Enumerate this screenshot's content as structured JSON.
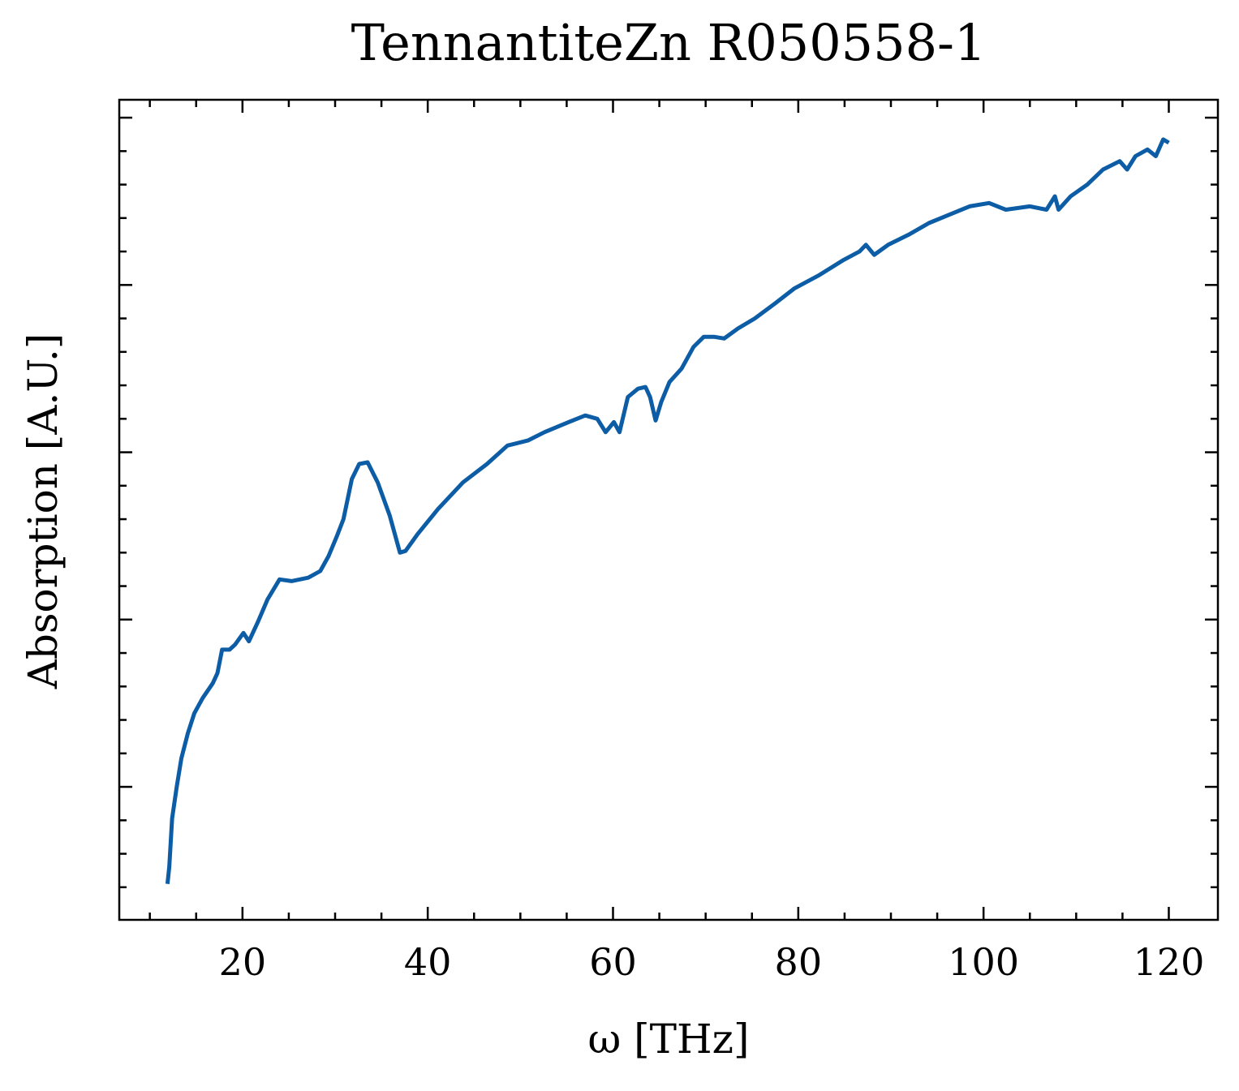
{
  "chart_data": {
    "type": "line",
    "title": "TennantiteZn R050558-1",
    "xlabel": "ω [THz]",
    "ylabel": "Absorption [A.U.]",
    "x": [
      11.9,
      12.1,
      12.4,
      12.9,
      13.4,
      14.1,
      14.8,
      15.7,
      16.8,
      17.3,
      17.8,
      18.6,
      19.2,
      20.1,
      20.7,
      21.7,
      22.7,
      24.0,
      25.3,
      27.1,
      28.4,
      29.3,
      30.2,
      30.9,
      31.8,
      32.6,
      33.5,
      34.6,
      35.9,
      37.0,
      37.6,
      38.9,
      41.1,
      43.8,
      46.4,
      48.6,
      50.8,
      52.6,
      55.2,
      57.0,
      58.3,
      59.2,
      60.1,
      60.7,
      61.6,
      62.7,
      63.5,
      64.0,
      64.6,
      65.2,
      66.1,
      67.4,
      68.7,
      69.8,
      70.9,
      72.0,
      73.5,
      75.3,
      77.5,
      79.6,
      82.3,
      84.9,
      86.6,
      87.3,
      88.2,
      89.7,
      91.9,
      94.1,
      96.3,
      98.5,
      100.6,
      102.4,
      105.0,
      106.8,
      107.7,
      108.1,
      109.4,
      111.2,
      112.9,
      114.7,
      115.5,
      116.4,
      117.7,
      118.6,
      119.4,
      120.0
    ],
    "series": [
      {
        "color": "#0c5da5",
        "values": [
          0.42,
          0.52,
          0.81,
          1.0,
          1.17,
          1.32,
          1.44,
          1.53,
          1.62,
          1.68,
          1.82,
          1.82,
          1.85,
          1.92,
          1.87,
          1.99,
          2.12,
          2.24,
          2.23,
          2.25,
          2.29,
          2.38,
          2.5,
          2.6,
          2.84,
          2.93,
          2.94,
          2.82,
          2.62,
          2.4,
          2.41,
          2.51,
          2.66,
          2.82,
          2.93,
          3.04,
          3.07,
          3.12,
          3.18,
          3.22,
          3.2,
          3.12,
          3.18,
          3.12,
          3.33,
          3.38,
          3.39,
          3.33,
          3.19,
          3.3,
          3.42,
          3.5,
          3.63,
          3.69,
          3.69,
          3.68,
          3.74,
          3.8,
          3.89,
          3.98,
          4.06,
          4.15,
          4.2,
          4.24,
          4.18,
          4.24,
          4.3,
          4.37,
          4.42,
          4.47,
          4.49,
          4.45,
          4.47,
          4.45,
          4.53,
          4.45,
          4.53,
          4.6,
          4.69,
          4.74,
          4.69,
          4.77,
          4.81,
          4.77,
          4.87,
          4.85
        ]
      }
    ],
    "xlim": [
      6.7,
      125.3
    ],
    "xticks": [
      20,
      40,
      60,
      80,
      100,
      120
    ],
    "xminorticks": [
      10,
      15,
      25,
      30,
      35,
      45,
      50,
      55,
      65,
      70,
      75,
      85,
      90,
      95,
      105,
      110,
      115
    ],
    "ylim": [
      0.205,
      5.107
    ],
    "yticks": [
      1,
      2,
      3,
      4,
      5
    ],
    "yminorticks": [
      0.4,
      0.6,
      0.8,
      1.2,
      1.4,
      1.6,
      1.8,
      2.2,
      2.4,
      2.6,
      2.8,
      3.2,
      3.4,
      3.6,
      3.8,
      4.2,
      4.4,
      4.6,
      4.8
    ]
  }
}
